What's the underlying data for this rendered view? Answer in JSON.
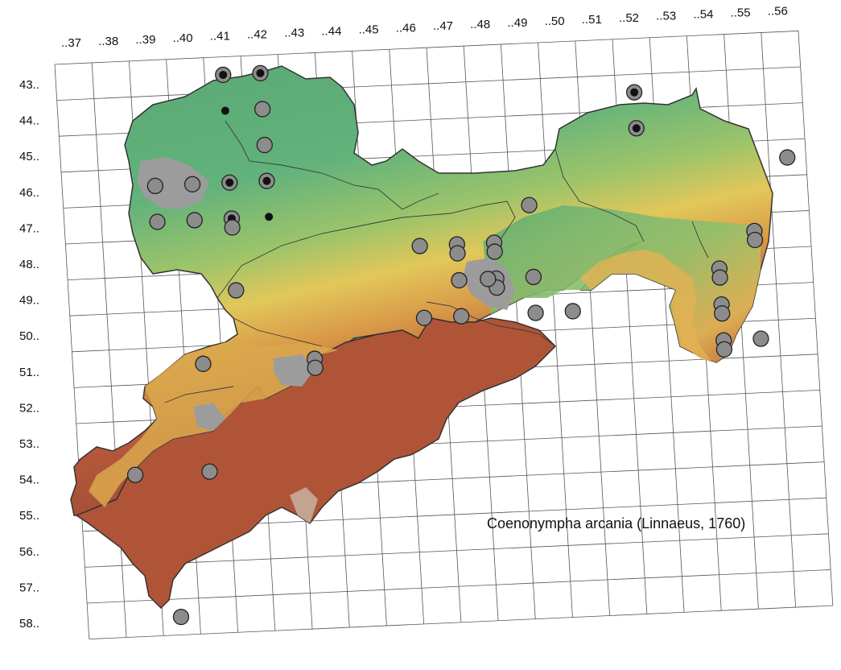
{
  "map": {
    "species_label": "Coenonympha arcania (Linnaeus, 1760)",
    "column_labels": [
      "..37",
      "..38",
      "..39",
      "..40",
      "..41",
      "..42",
      "..43",
      "..44",
      "..45",
      "..46",
      "..47",
      "..48",
      "..49",
      "..50",
      "..51",
      "..52",
      "..53",
      "..54",
      "..55",
      "..56"
    ],
    "row_labels": [
      "43..",
      "44..",
      "45..",
      "46..",
      "47..",
      "48..",
      "49..",
      "50..",
      "51..",
      "52..",
      "53..",
      "54..",
      "55..",
      "56..",
      "57..",
      "58.."
    ],
    "legend_colors": {
      "record_marker": "#8c8c8c",
      "historic_marker": "#111111",
      "urban_area": "#9e9e9e",
      "lowland": "#5fb37a",
      "upland": "#e8c45a",
      "mountain": "#a0452d"
    },
    "records": [
      {
        "col": "..41",
        "row": "43..",
        "type": "both"
      },
      {
        "col": "..42",
        "row": "43..",
        "type": "both"
      },
      {
        "col": "..41",
        "row": "44..",
        "type": "historic-small"
      },
      {
        "col": "..42",
        "row": "44..",
        "type": "record"
      },
      {
        "col": "..42",
        "row": "45..",
        "type": "record"
      },
      {
        "col": "..42",
        "row": "46..",
        "type": "both"
      },
      {
        "col": "..39",
        "row": "46..",
        "type": "record"
      },
      {
        "col": "..40",
        "row": "46..",
        "type": "record"
      },
      {
        "col": "..41",
        "row": "46..",
        "type": "both"
      },
      {
        "col": "..41",
        "row": "47..",
        "type": "both"
      },
      {
        "col": "..42",
        "row": "47..",
        "type": "historic-small"
      },
      {
        "col": "..39",
        "row": "47..",
        "type": "record"
      },
      {
        "col": "..40",
        "row": "47..",
        "type": "record"
      },
      {
        "col": "..41",
        "row": "47..",
        "type": "record"
      },
      {
        "col": "..41",
        "row": "49..",
        "type": "record"
      },
      {
        "col": "..52",
        "row": "45..",
        "type": "both"
      },
      {
        "col": "..52",
        "row": "44..",
        "type": "both"
      },
      {
        "col": "..56",
        "row": "46..",
        "type": "record"
      },
      {
        "col": "..49",
        "row": "47..",
        "type": "record"
      },
      {
        "col": "..46",
        "row": "48..",
        "type": "record"
      },
      {
        "col": "..47",
        "row": "48..",
        "type": "record"
      },
      {
        "col": "..48",
        "row": "48..",
        "type": "record"
      },
      {
        "col": "..47",
        "row": "48..",
        "type": "record"
      },
      {
        "col": "..48",
        "row": "48..",
        "type": "record"
      },
      {
        "col": "..47",
        "row": "49..",
        "type": "record"
      },
      {
        "col": "..48",
        "row": "49..",
        "type": "record"
      },
      {
        "col": "..48",
        "row": "49..",
        "type": "record"
      },
      {
        "col": "..49",
        "row": "49..",
        "type": "record"
      },
      {
        "col": "..48",
        "row": "49..",
        "type": "record"
      },
      {
        "col": "..47",
        "row": "50..",
        "type": "record"
      },
      {
        "col": "..49",
        "row": "50..",
        "type": "record"
      },
      {
        "col": "..46",
        "row": "50..",
        "type": "record"
      },
      {
        "col": "..50",
        "row": "50..",
        "type": "record"
      },
      {
        "col": "..55",
        "row": "48..",
        "type": "record"
      },
      {
        "col": "..55",
        "row": "48..",
        "type": "record"
      },
      {
        "col": "..54",
        "row": "49..",
        "type": "record"
      },
      {
        "col": "..54",
        "row": "49..",
        "type": "record"
      },
      {
        "col": "..54",
        "row": "50..",
        "type": "record"
      },
      {
        "col": "..54",
        "row": "50..",
        "type": "record"
      },
      {
        "col": "..54",
        "row": "51..",
        "type": "record"
      },
      {
        "col": "..54",
        "row": "51..",
        "type": "record"
      },
      {
        "col": "..55",
        "row": "51..",
        "type": "record"
      },
      {
        "col": "..43",
        "row": "51..",
        "type": "record"
      },
      {
        "col": "..43",
        "row": "51..",
        "type": "record"
      },
      {
        "col": "..40",
        "row": "51..",
        "type": "record"
      },
      {
        "col": "..40",
        "row": "54..",
        "type": "record"
      },
      {
        "col": "..38",
        "row": "54..",
        "type": "record"
      },
      {
        "col": "..39",
        "row": "58..",
        "type": "record"
      }
    ]
  }
}
